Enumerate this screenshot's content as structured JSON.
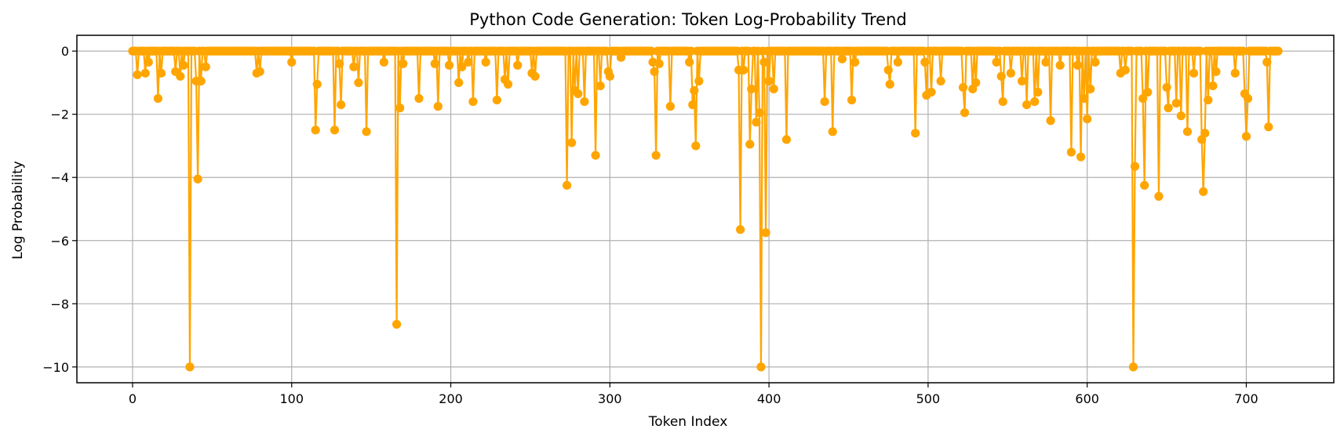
{
  "chart_data": {
    "type": "line",
    "title": "Python Code Generation: Token Log-Probability Trend",
    "xlabel": "Token Index",
    "ylabel": "Log Probability",
    "xlim": [
      -35,
      755
    ],
    "ylim": [
      -10.5,
      0.5
    ],
    "xticks": [
      0,
      100,
      200,
      300,
      400,
      500,
      600,
      700
    ],
    "yticks": [
      0,
      -2,
      -4,
      -6,
      -8,
      -10
    ],
    "ytick_labels": [
      "0",
      "−2",
      "−4",
      "−6",
      "−8",
      "−10"
    ],
    "grid": true,
    "marker": "circle",
    "color": "#ffa500",
    "series": [
      {
        "x_start": 0,
        "x_end": 720,
        "baseline": 0,
        "dips": [
          [
            3,
            -0.75
          ],
          [
            8,
            -0.7
          ],
          [
            10,
            -0.35
          ],
          [
            16,
            -1.5
          ],
          [
            18,
            -0.7
          ],
          [
            27,
            -0.65
          ],
          [
            30,
            -0.8
          ],
          [
            32,
            -0.45
          ],
          [
            36,
            -10.0
          ],
          [
            40,
            -0.95
          ],
          [
            41,
            -4.05
          ],
          [
            43,
            -0.95
          ],
          [
            46,
            -0.5
          ],
          [
            78,
            -0.7
          ],
          [
            80,
            -0.65
          ],
          [
            100,
            -0.35
          ],
          [
            115,
            -2.5
          ],
          [
            116,
            -1.05
          ],
          [
            127,
            -2.5
          ],
          [
            130,
            -0.4
          ],
          [
            131,
            -1.7
          ],
          [
            139,
            -0.5
          ],
          [
            142,
            -1.0
          ],
          [
            147,
            -2.55
          ],
          [
            158,
            -0.35
          ],
          [
            166,
            -8.65
          ],
          [
            168,
            -1.8
          ],
          [
            170,
            -0.4
          ],
          [
            180,
            -1.5
          ],
          [
            190,
            -0.4
          ],
          [
            192,
            -1.75
          ],
          [
            199,
            -0.45
          ],
          [
            205,
            -1.0
          ],
          [
            207,
            -0.5
          ],
          [
            211,
            -0.35
          ],
          [
            214,
            -1.6
          ],
          [
            222,
            -0.35
          ],
          [
            229,
            -1.55
          ],
          [
            234,
            -0.9
          ],
          [
            236,
            -1.05
          ],
          [
            242,
            -0.45
          ],
          [
            251,
            -0.7
          ],
          [
            253,
            -0.8
          ],
          [
            273,
            -4.25
          ],
          [
            276,
            -2.9
          ],
          [
            278,
            -1.25
          ],
          [
            280,
            -1.35
          ],
          [
            284,
            -1.6
          ],
          [
            291,
            -3.3
          ],
          [
            294,
            -1.1
          ],
          [
            299,
            -0.65
          ],
          [
            300,
            -0.8
          ],
          [
            307,
            -0.2
          ],
          [
            327,
            -0.35
          ],
          [
            328,
            -0.65
          ],
          [
            329,
            -3.3
          ],
          [
            331,
            -0.4
          ],
          [
            338,
            -1.75
          ],
          [
            350,
            -0.35
          ],
          [
            352,
            -1.7
          ],
          [
            353,
            -1.25
          ],
          [
            354,
            -3.0
          ],
          [
            356,
            -0.95
          ],
          [
            381,
            -0.6
          ],
          [
            382,
            -5.65
          ],
          [
            384,
            -0.6
          ],
          [
            388,
            -2.95
          ],
          [
            389,
            -1.2
          ],
          [
            392,
            -2.25
          ],
          [
            394,
            -1.95
          ],
          [
            395,
            -10.0
          ],
          [
            397,
            -0.35
          ],
          [
            398,
            -5.75
          ],
          [
            400,
            -0.95
          ],
          [
            403,
            -1.2
          ],
          [
            411,
            -2.8
          ],
          [
            435,
            -1.6
          ],
          [
            440,
            -2.55
          ],
          [
            446,
            -0.25
          ],
          [
            452,
            -1.55
          ],
          [
            454,
            -0.35
          ],
          [
            475,
            -0.6
          ],
          [
            476,
            -1.05
          ],
          [
            481,
            -0.35
          ],
          [
            492,
            -2.6
          ],
          [
            498,
            -0.35
          ],
          [
            499,
            -1.4
          ],
          [
            502,
            -1.3
          ],
          [
            508,
            -0.95
          ],
          [
            522,
            -1.15
          ],
          [
            523,
            -1.95
          ],
          [
            528,
            -1.2
          ],
          [
            530,
            -1.0
          ],
          [
            543,
            -0.35
          ],
          [
            546,
            -0.8
          ],
          [
            547,
            -1.6
          ],
          [
            552,
            -0.7
          ],
          [
            559,
            -0.95
          ],
          [
            562,
            -1.7
          ],
          [
            567,
            -1.6
          ],
          [
            569,
            -1.3
          ],
          [
            574,
            -0.35
          ],
          [
            577,
            -2.2
          ],
          [
            583,
            -0.45
          ],
          [
            590,
            -3.2
          ],
          [
            594,
            -0.45
          ],
          [
            596,
            -3.35
          ],
          [
            598,
            -1.5
          ],
          [
            600,
            -2.15
          ],
          [
            602,
            -1.2
          ],
          [
            605,
            -0.35
          ],
          [
            621,
            -0.7
          ],
          [
            624,
            -0.6
          ],
          [
            629,
            -10.0
          ],
          [
            630,
            -3.65
          ],
          [
            635,
            -1.5
          ],
          [
            636,
            -4.25
          ],
          [
            638,
            -1.3
          ],
          [
            645,
            -4.6
          ],
          [
            650,
            -1.15
          ],
          [
            651,
            -1.8
          ],
          [
            656,
            -1.65
          ],
          [
            659,
            -2.05
          ],
          [
            663,
            -2.55
          ],
          [
            667,
            -0.7
          ],
          [
            672,
            -2.8
          ],
          [
            673,
            -4.45
          ],
          [
            674,
            -2.6
          ],
          [
            676,
            -1.55
          ],
          [
            679,
            -1.1
          ],
          [
            681,
            -0.65
          ],
          [
            693,
            -0.7
          ],
          [
            699,
            -1.35
          ],
          [
            700,
            -2.7
          ],
          [
            701,
            -1.5
          ],
          [
            713,
            -0.35
          ],
          [
            714,
            -2.4
          ]
        ]
      }
    ]
  }
}
